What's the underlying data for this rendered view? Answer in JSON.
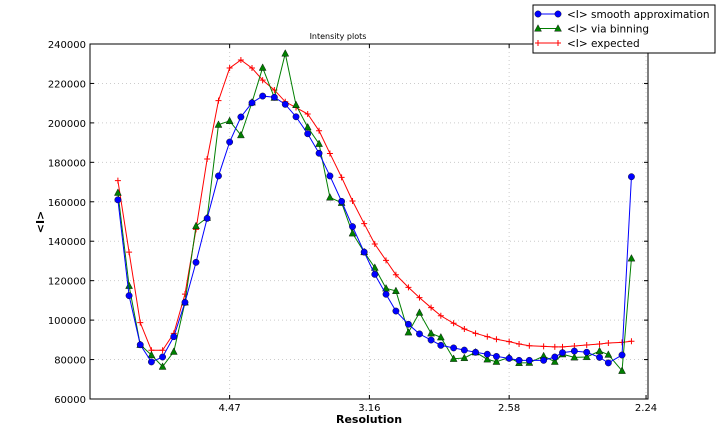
{
  "chart_data": {
    "type": "line",
    "title": "Intensity plots",
    "xlabel": "Resolution",
    "ylabel": "<I>",
    "x_scale": "reciprocal-square (1/d^2)",
    "xticks": [
      "4.47",
      "3.16",
      "2.58",
      "2.24"
    ],
    "ylim": [
      60000,
      240000
    ],
    "yticks": [
      60000,
      80000,
      100000,
      120000,
      140000,
      160000,
      180000,
      200000,
      220000,
      240000
    ],
    "grid": true,
    "legend_position": "top-right",
    "x": [
      10.0,
      8.45,
      7.45,
      6.74,
      6.2,
      5.77,
      5.42,
      5.13,
      4.88,
      4.66,
      4.47,
      4.3,
      4.15,
      4.02,
      3.89,
      3.78,
      3.68,
      3.58,
      3.49,
      3.41,
      3.33,
      3.26,
      3.19,
      3.13,
      3.07,
      3.02,
      2.96,
      2.91,
      2.86,
      2.82,
      2.77,
      2.73,
      2.69,
      2.65,
      2.62,
      2.58,
      2.55,
      2.52,
      2.48,
      2.45,
      2.43,
      2.4,
      2.37,
      2.34,
      2.32,
      2.29,
      2.27
    ],
    "series": [
      {
        "name": "<I> smooth approximation",
        "color": "#0000ff",
        "marker": "circle",
        "values": [
          161000,
          112400,
          87500,
          78800,
          81300,
          91600,
          109000,
          129300,
          151600,
          173100,
          190300,
          203000,
          210200,
          213600,
          213000,
          209400,
          203100,
          194500,
          184600,
          173100,
          160200,
          147400,
          134500,
          123200,
          113100,
          104600,
          97900,
          93000,
          89900,
          87200,
          85900,
          84800,
          83700,
          82700,
          81600,
          80600,
          79600,
          79600,
          79600,
          81300,
          83500,
          84300,
          83700,
          81100,
          78300,
          82300,
          172700
        ]
      },
      {
        "name": "<I> via binning",
        "color": "#007f00",
        "marker": "triangle",
        "values": [
          164600,
          117400,
          87500,
          82300,
          76400,
          84000,
          109000,
          147700,
          151900,
          199100,
          201000,
          193800,
          210400,
          228000,
          212800,
          235200,
          209100,
          197800,
          189400,
          162200,
          159500,
          144000,
          134500,
          126600,
          116100,
          114800,
          93800,
          103800,
          93300,
          91300,
          80400,
          80800,
          83700,
          80100,
          78900,
          81100,
          78300,
          78400,
          81800,
          78900,
          82700,
          81100,
          81300,
          84300,
          82500,
          74300,
          131300
        ]
      },
      {
        "name": "<I> expected",
        "color": "#ff0000",
        "marker": "plus",
        "values": [
          170700,
          134500,
          98700,
          84700,
          84700,
          93300,
          113200,
          146000,
          181700,
          211300,
          227800,
          231900,
          227800,
          221700,
          216700,
          210700,
          207800,
          204500,
          196000,
          184500,
          172400,
          160400,
          148900,
          138600,
          130300,
          123000,
          116600,
          111400,
          106300,
          102200,
          98400,
          95500,
          93300,
          91600,
          90300,
          89100,
          87900,
          87000,
          86700,
          86400,
          86400,
          86900,
          87400,
          87900,
          88400,
          88700,
          89300
        ]
      }
    ]
  }
}
